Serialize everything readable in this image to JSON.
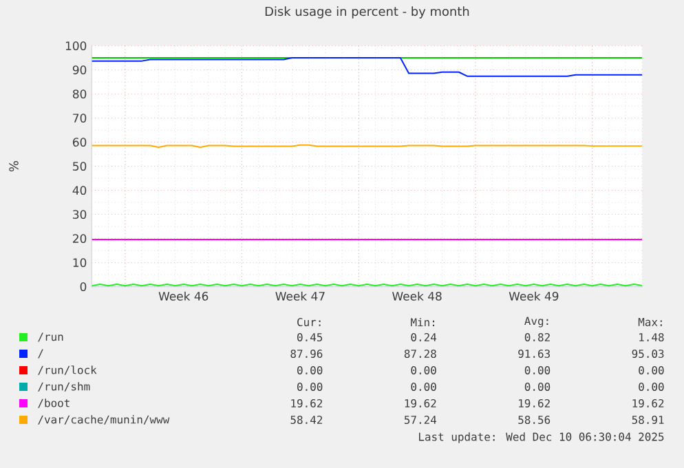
{
  "chart_data": {
    "type": "line",
    "title": "Disk usage in percent - by month",
    "ylabel": "%",
    "categories": [
      null,
      null,
      null,
      null,
      null,
      null,
      null,
      null,
      null,
      null,
      null,
      "Week 46",
      null,
      null,
      null,
      null,
      null,
      null,
      null,
      null,
      null,
      null,
      null,
      null,
      null,
      "Week 47",
      null,
      null,
      null,
      null,
      null,
      null,
      null,
      null,
      null,
      null,
      null,
      null,
      null,
      "Week 48",
      null,
      null,
      null,
      null,
      null,
      null,
      null,
      null,
      null,
      null,
      null,
      null,
      null,
      "Week 49",
      null,
      null,
      null,
      null,
      null,
      null,
      null,
      null,
      null,
      null,
      null,
      null,
      null
    ],
    "ylim": [
      0,
      100
    ],
    "yticks": [
      0,
      10,
      20,
      30,
      40,
      50,
      60,
      70,
      80,
      90,
      100
    ],
    "grid": true,
    "legend": "bottom",
    "marker": "none",
    "line_style": "solid",
    "ref_lines": [
      {
        "axis": "y",
        "value": 95,
        "color": "#00cc00"
      }
    ],
    "series": [
      {
        "name": "/run",
        "color": "#22ee22",
        "values": [
          0.4,
          1.0,
          0.4,
          1.0,
          0.4,
          1.0,
          0.4,
          1.0,
          0.4,
          1.0,
          0.4,
          1.0,
          0.4,
          1.0,
          0.4,
          1.0,
          0.4,
          1.0,
          0.4,
          1.0,
          0.4,
          1.0,
          0.4,
          1.0,
          0.4,
          1.0,
          0.4,
          1.0,
          0.4,
          1.0,
          0.4,
          1.0,
          0.4,
          1.0,
          0.4,
          1.0,
          0.4,
          1.0,
          0.4,
          1.0,
          0.4,
          1.0,
          0.4,
          1.0,
          0.4,
          1.0,
          0.4,
          1.0,
          0.4,
          1.0,
          0.4,
          1.0,
          0.4,
          1.0,
          0.4,
          1.0,
          0.4,
          1.0,
          0.4,
          1.0,
          0.4,
          1.0,
          0.4,
          1.0,
          0.4,
          1.0,
          0.45
        ]
      },
      {
        "name": "/",
        "color": "#0022ff",
        "values": [
          93.7,
          93.7,
          93.7,
          93.7,
          93.7,
          93.7,
          93.7,
          94.3,
          94.3,
          94.3,
          94.3,
          94.3,
          94.3,
          94.3,
          94.3,
          94.3,
          94.3,
          94.3,
          94.3,
          94.3,
          94.3,
          94.3,
          94.3,
          94.3,
          95.0,
          95.0,
          95.0,
          95.0,
          95.0,
          95.0,
          95.0,
          95.0,
          95.0,
          95.0,
          95.0,
          95.0,
          95.0,
          95.0,
          88.6,
          88.6,
          88.6,
          88.6,
          89.1,
          89.1,
          89.1,
          87.4,
          87.4,
          87.4,
          87.4,
          87.4,
          87.4,
          87.4,
          87.4,
          87.4,
          87.4,
          87.4,
          87.4,
          87.4,
          87.96,
          87.96,
          87.96,
          87.96,
          87.96,
          87.96,
          87.96,
          87.96,
          87.96
        ]
      },
      {
        "name": "/run/lock",
        "color": "#ff0000",
        "values": [
          null,
          null,
          null,
          null,
          null,
          null,
          null,
          null,
          null,
          null,
          null,
          null,
          null,
          null,
          null,
          null,
          null,
          null,
          null,
          null,
          null,
          null,
          null,
          null,
          null,
          null,
          null,
          null,
          null,
          null,
          null,
          null,
          null,
          null,
          null,
          null,
          null,
          null,
          null,
          null,
          null,
          null,
          null,
          null,
          null,
          null,
          null,
          null,
          null,
          null,
          null,
          null,
          null,
          null,
          null,
          null,
          null,
          null,
          null,
          null,
          null,
          null,
          null,
          null,
          null,
          null,
          null
        ]
      },
      {
        "name": "/run/shm",
        "color": "#00aaaa",
        "values": [
          null,
          null,
          null,
          null,
          null,
          null,
          null,
          null,
          null,
          null,
          null,
          null,
          null,
          null,
          null,
          null,
          null,
          null,
          null,
          null,
          null,
          null,
          null,
          null,
          null,
          null,
          null,
          null,
          null,
          null,
          null,
          null,
          null,
          null,
          null,
          null,
          null,
          null,
          null,
          null,
          null,
          null,
          null,
          null,
          null,
          null,
          null,
          null,
          null,
          null,
          null,
          null,
          null,
          null,
          null,
          null,
          null,
          null,
          null,
          null,
          null,
          null,
          null,
          null,
          null,
          null,
          null
        ]
      },
      {
        "name": "/boot",
        "color": "#ff00ff",
        "values": [
          19.62,
          19.62,
          19.62,
          19.62,
          19.62,
          19.62,
          19.62,
          19.62,
          19.62,
          19.62,
          19.62,
          19.62,
          19.62,
          19.62,
          19.62,
          19.62,
          19.62,
          19.62,
          19.62,
          19.62,
          19.62,
          19.62,
          19.62,
          19.62,
          19.62,
          19.62,
          19.62,
          19.62,
          19.62,
          19.62,
          19.62,
          19.62,
          19.62,
          19.62,
          19.62,
          19.62,
          19.62,
          19.62,
          19.62,
          19.62,
          19.62,
          19.62,
          19.62,
          19.62,
          19.62,
          19.62,
          19.62,
          19.62,
          19.62,
          19.62,
          19.62,
          19.62,
          19.62,
          19.62,
          19.62,
          19.62,
          19.62,
          19.62,
          19.62,
          19.62,
          19.62,
          19.62,
          19.62,
          19.62,
          19.62,
          19.62,
          19.62
        ]
      },
      {
        "name": "/var/cache/munin/www",
        "color": "#ffaa00",
        "values": [
          58.6,
          58.6,
          58.6,
          58.6,
          58.6,
          58.6,
          58.6,
          58.6,
          57.9,
          58.6,
          58.6,
          58.6,
          58.6,
          57.9,
          58.6,
          58.6,
          58.6,
          58.3,
          58.3,
          58.3,
          58.3,
          58.3,
          58.3,
          58.3,
          58.3,
          58.8,
          58.8,
          58.3,
          58.3,
          58.3,
          58.3,
          58.3,
          58.3,
          58.3,
          58.3,
          58.3,
          58.3,
          58.3,
          58.6,
          58.6,
          58.6,
          58.6,
          58.3,
          58.3,
          58.3,
          58.3,
          58.6,
          58.6,
          58.6,
          58.6,
          58.6,
          58.6,
          58.6,
          58.6,
          58.6,
          58.6,
          58.6,
          58.6,
          58.6,
          58.6,
          58.42,
          58.42,
          58.42,
          58.42,
          58.42,
          58.42,
          58.42
        ]
      }
    ],
    "annotations": [
      "Cur:",
      "Min:",
      "Avg:",
      "Max:",
      "0.45",
      "0.24",
      "0.82",
      "1.48",
      "87.96",
      "87.28",
      "91.63",
      "95.03",
      "0.00",
      "0.00",
      "0.00",
      "0.00",
      "0.00",
      "0.00",
      "0.00",
      "0.00",
      "19.62",
      "19.62",
      "19.62",
      "19.62",
      "58.42",
      "57.24",
      "58.56",
      "58.91",
      "Last update: Wed Dec 10 06:30:04 2025"
    ]
  }
}
